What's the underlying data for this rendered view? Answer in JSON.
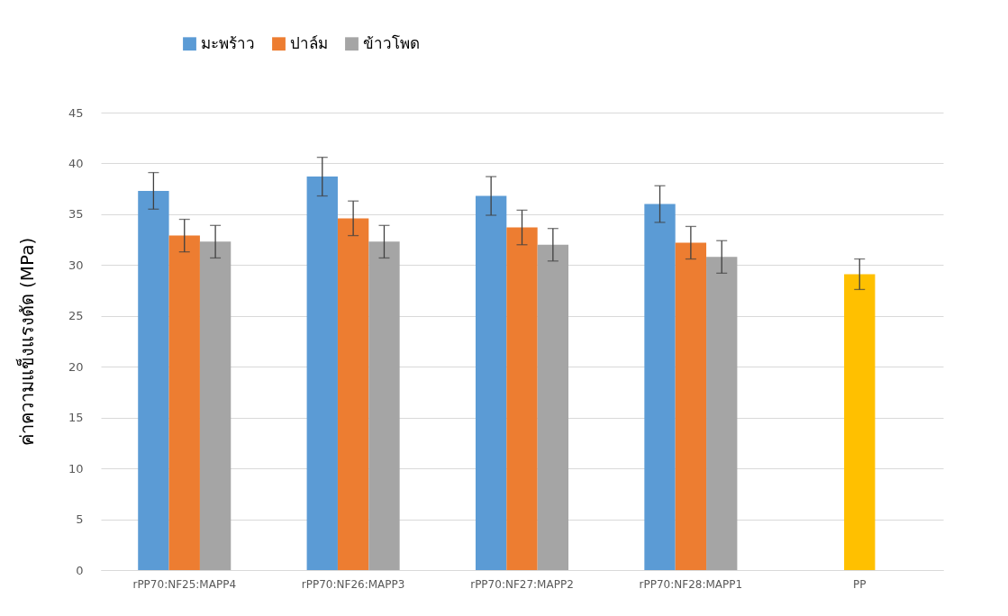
{
  "chart_data": {
    "type": "bar",
    "ylabel": "ค่าความแข็งแรงดัด (MPa)",
    "categories": [
      "rPP70:NF25:MAPP4",
      "rPP70:NF26:MAPP3",
      "rPP70:NF27:MAPP2",
      "rPP70:NF28:MAPP1",
      "PP"
    ],
    "series": [
      {
        "name": "มะพร้าว",
        "color": "#5b9bd5",
        "values": [
          37.3,
          38.7,
          36.8,
          36.0,
          null
        ],
        "errors": [
          1.8,
          1.9,
          1.9,
          1.8,
          null
        ]
      },
      {
        "name": "ปาล์ม",
        "color": "#ed7d31",
        "values": [
          32.9,
          34.6,
          33.7,
          32.2,
          null
        ],
        "errors": [
          1.6,
          1.7,
          1.7,
          1.6,
          null
        ]
      },
      {
        "name": "ข้าวโพด",
        "color": "#a5a5a5",
        "values": [
          32.3,
          32.3,
          32.0,
          30.8,
          null
        ],
        "errors": [
          1.6,
          1.6,
          1.6,
          1.6,
          null
        ]
      },
      {
        "color": "#ffc000",
        "values": [
          null,
          null,
          null,
          null,
          29.1
        ],
        "errors": [
          null,
          null,
          null,
          null,
          1.5
        ]
      }
    ],
    "ylim": [
      0,
      45
    ],
    "yticks": [
      0,
      5,
      10,
      15,
      20,
      25,
      30,
      35,
      40,
      45
    ],
    "grid": "y",
    "legend": "top left"
  }
}
